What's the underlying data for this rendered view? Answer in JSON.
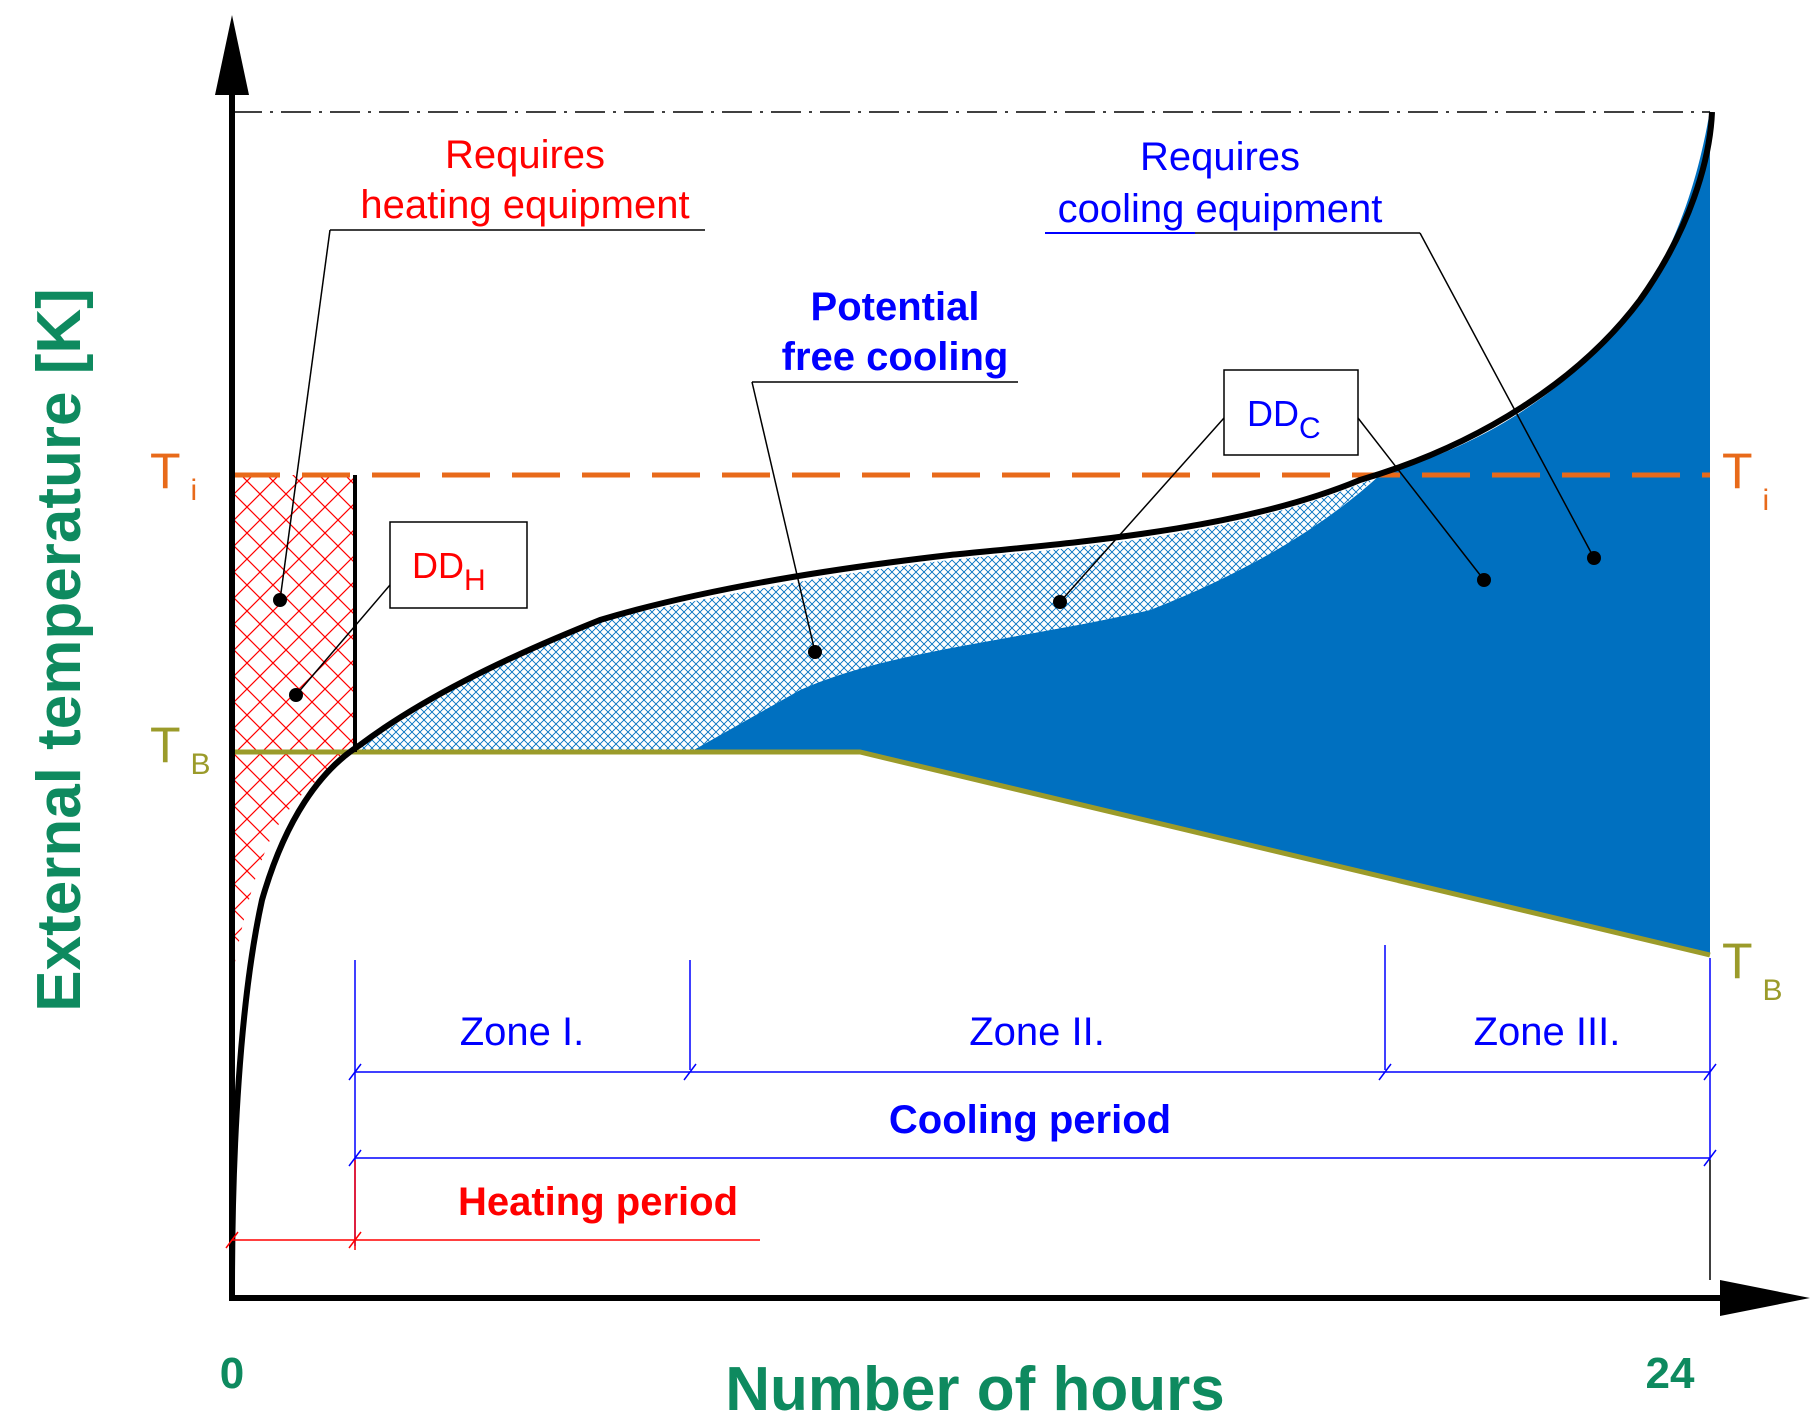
{
  "axes": {
    "y_label": "External temperature [K]",
    "x_label": "Number of hours",
    "x_start": "0",
    "x_end": "24"
  },
  "levels": {
    "ti_left": "T",
    "ti_left_sub": "i",
    "ti_right": "T",
    "ti_right_sub": "i",
    "tb_left": "T",
    "tb_left_sub": "B",
    "tb_right": "T",
    "tb_right_sub": "B"
  },
  "annotations": {
    "heating_line1": "Requires",
    "heating_line2": "heating equipment",
    "cooling_line1": "Requires",
    "cooling_line2": "cooling equipment",
    "free_line1": "Potential",
    "free_line2": "free cooling",
    "ddh_main": "DD",
    "ddh_sub": "H",
    "ddc_main": "DD",
    "ddc_sub": "C"
  },
  "zones": {
    "zone1": "Zone I.",
    "zone2": "Zone II.",
    "zone3": "Zone III.",
    "cooling_period": "Cooling period",
    "heating_period": "Heating period"
  },
  "colors": {
    "heating": "#ff0000",
    "cooling": "#0000ff",
    "cooling_fill": "#0070c0",
    "ti_line": "#e86a1a",
    "tb_line": "#9b9b2a",
    "axis_text": "#0e8a5f"
  }
}
